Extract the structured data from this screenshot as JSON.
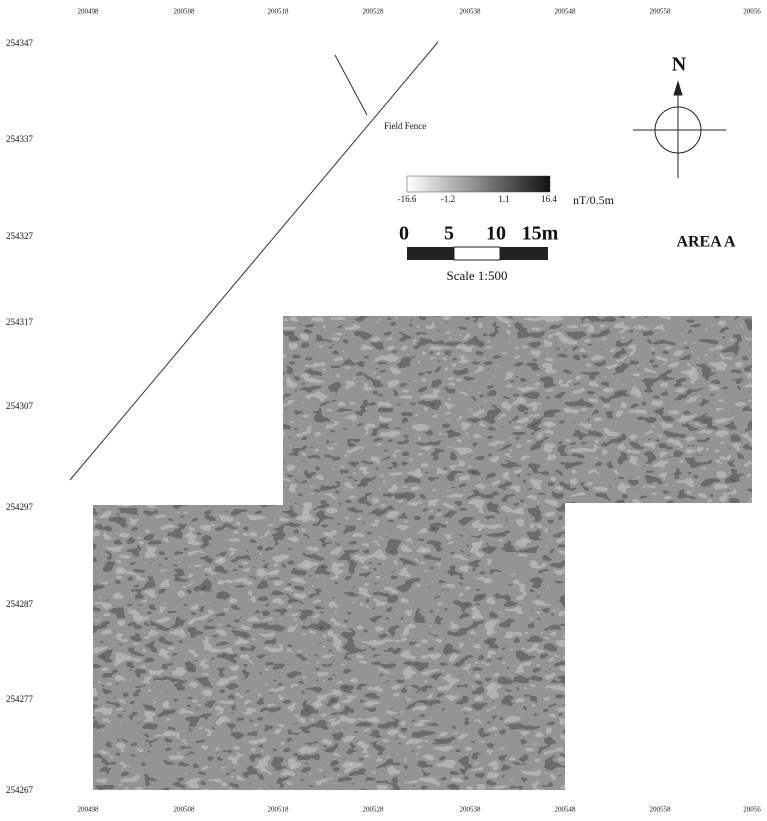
{
  "top_axis": [
    "200498",
    "200508",
    "200518",
    "200528",
    "200538",
    "200548",
    "200558",
    "20056"
  ],
  "bottom_axis": [
    "200498",
    "200508",
    "200518",
    "200528",
    "200538",
    "200548",
    "200558",
    "20056"
  ],
  "left_axis": [
    "254347",
    "254337",
    "254327",
    "254317",
    "254307",
    "254297",
    "254287",
    "254277",
    "254267"
  ],
  "field_fence": "Field Fence",
  "north": "N",
  "legend": {
    "labels": [
      "-16.6",
      "-1.2",
      "1.1",
      "16.4"
    ],
    "unit": "nT/0.5m"
  },
  "scale_bar": {
    "labels": [
      "0",
      "5",
      "10",
      "15m"
    ],
    "caption": "Scale 1:500"
  },
  "area_label": "AREA A"
}
